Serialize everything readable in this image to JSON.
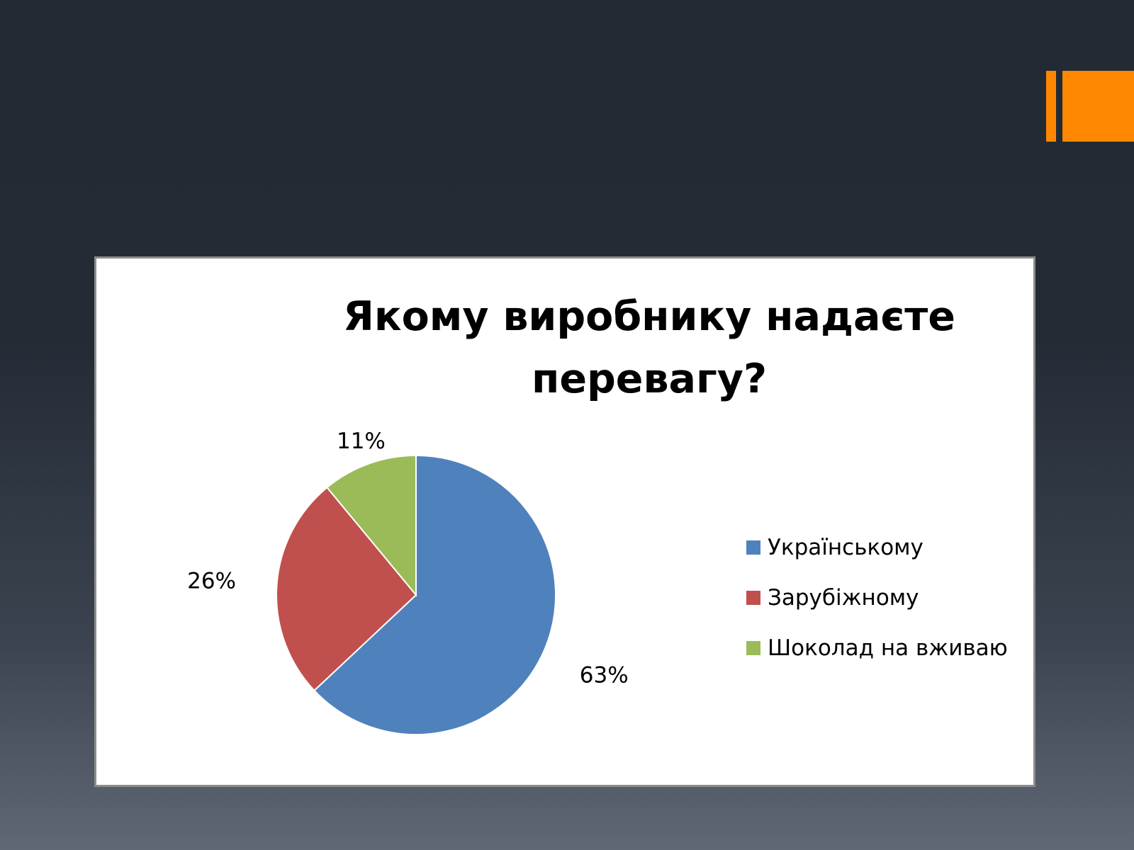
{
  "chart_data": {
    "type": "pie",
    "title": "Якому виробнику надаєте перевагу?",
    "title_lines": [
      "Якому виробнику надаєте",
      "перевагу?"
    ],
    "categories": [
      "Українському",
      "Зарубіжному",
      "Шоколад на вживаю"
    ],
    "values": [
      63,
      26,
      11
    ],
    "data_labels": [
      "63%",
      "26%",
      "11%"
    ],
    "colors": [
      "#4f81bd",
      "#c0504d",
      "#9bbb59"
    ],
    "legend_position": "right",
    "unit": "%"
  },
  "theme": {
    "accent_color": "#fd8700",
    "slice_border": "#ffffff",
    "chart_background": "#ffffff"
  }
}
